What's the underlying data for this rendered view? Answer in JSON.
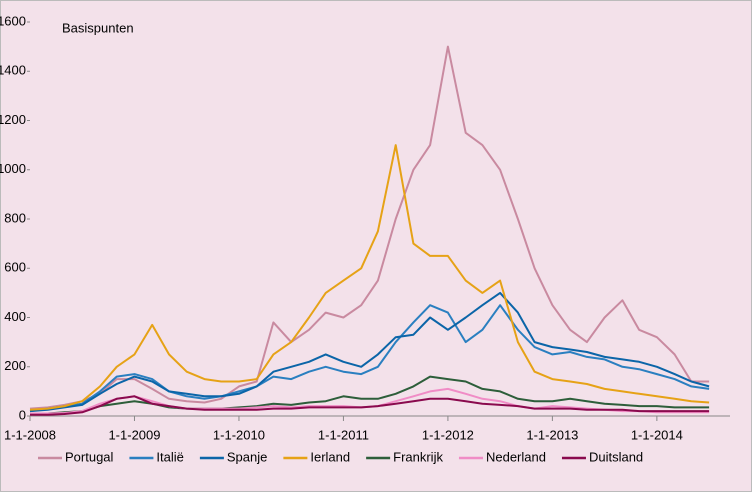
{
  "chart_data": {
    "type": "line",
    "annotation": "Basispunten",
    "x": [
      2008,
      2008.17,
      2008.33,
      2008.5,
      2008.67,
      2008.83,
      2009,
      2009.17,
      2009.33,
      2009.5,
      2009.67,
      2009.83,
      2010,
      2010.17,
      2010.33,
      2010.5,
      2010.67,
      2010.83,
      2011,
      2011.17,
      2011.33,
      2011.5,
      2011.67,
      2011.83,
      2012,
      2012.17,
      2012.33,
      2012.5,
      2012.67,
      2012.83,
      2013,
      2013.17,
      2013.33,
      2013.5,
      2013.67,
      2013.83,
      2014,
      2014.17,
      2014.33,
      2014.5
    ],
    "series": [
      {
        "name": "Portugal",
        "color": "#c98aa0",
        "values": [
          30,
          35,
          45,
          60,
          90,
          150,
          150,
          110,
          70,
          60,
          55,
          70,
          120,
          140,
          380,
          300,
          350,
          420,
          400,
          450,
          550,
          800,
          1000,
          1100,
          1500,
          1150,
          1100,
          1000,
          800,
          600,
          450,
          350,
          300,
          400,
          470,
          350,
          320,
          250,
          140,
          140
        ]
      },
      {
        "name": "Italië",
        "color": "#2a7fc0",
        "values": [
          20,
          30,
          40,
          50,
          100,
          160,
          170,
          150,
          100,
          80,
          70,
          80,
          100,
          120,
          160,
          150,
          180,
          200,
          180,
          170,
          200,
          300,
          380,
          450,
          420,
          300,
          350,
          450,
          350,
          280,
          250,
          260,
          240,
          230,
          200,
          190,
          170,
          150,
          120,
          110
        ]
      },
      {
        "name": "Spanje",
        "color": "#0b65a8",
        "values": [
          20,
          25,
          35,
          45,
          90,
          130,
          160,
          140,
          100,
          90,
          80,
          80,
          90,
          120,
          180,
          200,
          220,
          250,
          220,
          200,
          250,
          320,
          330,
          400,
          350,
          400,
          450,
          500,
          420,
          300,
          280,
          270,
          260,
          240,
          230,
          220,
          200,
          170,
          140,
          120
        ]
      },
      {
        "name": "Ierland",
        "color": "#e6a216",
        "values": [
          25,
          30,
          40,
          60,
          120,
          200,
          250,
          370,
          250,
          180,
          150,
          140,
          140,
          150,
          250,
          300,
          400,
          500,
          550,
          600,
          750,
          1100,
          700,
          650,
          650,
          550,
          500,
          550,
          300,
          180,
          150,
          140,
          130,
          110,
          100,
          90,
          80,
          70,
          60,
          55
        ]
      },
      {
        "name": "Frankrijk",
        "color": "#2d5e3a",
        "values": [
          10,
          10,
          15,
          20,
          40,
          50,
          60,
          50,
          35,
          30,
          30,
          30,
          35,
          40,
          50,
          45,
          55,
          60,
          80,
          70,
          70,
          90,
          120,
          160,
          150,
          140,
          110,
          100,
          70,
          60,
          60,
          70,
          60,
          50,
          45,
          40,
          40,
          35,
          35,
          35
        ]
      },
      {
        "name": "Nederland",
        "color": "#f08cc6",
        "values": [
          10,
          10,
          12,
          20,
          50,
          70,
          80,
          60,
          40,
          30,
          30,
          30,
          30,
          35,
          40,
          35,
          40,
          40,
          40,
          35,
          40,
          60,
          80,
          100,
          110,
          90,
          70,
          60,
          40,
          30,
          40,
          35,
          30,
          25,
          20,
          20,
          15,
          15,
          15,
          15
        ]
      },
      {
        "name": "Duitsland",
        "color": "#8a0a4e",
        "values": [
          5,
          5,
          8,
          15,
          40,
          70,
          80,
          50,
          40,
          30,
          25,
          25,
          25,
          25,
          30,
          30,
          35,
          35,
          35,
          35,
          40,
          50,
          60,
          70,
          70,
          60,
          50,
          45,
          40,
          30,
          30,
          30,
          25,
          25,
          25,
          20,
          20,
          20,
          20,
          20
        ]
      }
    ],
    "xlim": [
      2008,
      2014.7
    ],
    "xticks": [
      {
        "value": 2008,
        "label": "1-1-2008"
      },
      {
        "value": 2009,
        "label": "1-1-2009"
      },
      {
        "value": 2010,
        "label": "1-1-2010"
      },
      {
        "value": 2011,
        "label": "1-1-2011"
      },
      {
        "value": 2012,
        "label": "1-1-2012"
      },
      {
        "value": 2013,
        "label": "1-1-2013"
      },
      {
        "value": 2014,
        "label": "1-1-2014"
      }
    ],
    "ylim": [
      0,
      1600
    ],
    "yticks": [
      0,
      200,
      400,
      600,
      800,
      1000,
      1200,
      1400,
      1600
    ]
  }
}
